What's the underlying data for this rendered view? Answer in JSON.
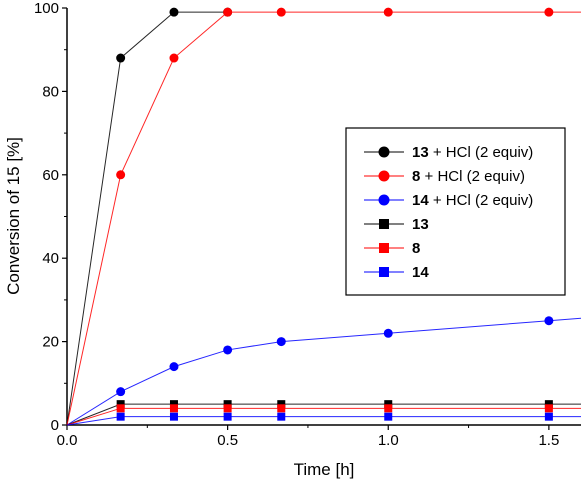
{
  "chart_data": {
    "type": "line",
    "xlabel": "Time [h]",
    "ylabel": "Conversion of 15 [%]",
    "xlim": [
      0,
      1.6
    ],
    "ylim": [
      0,
      100
    ],
    "x_ticks": [
      0.0,
      0.5,
      1.0,
      1.5
    ],
    "x_tick_labels": [
      "0.0",
      "0.5",
      "1.0",
      "1.5"
    ],
    "y_ticks": [
      0,
      20,
      40,
      60,
      80,
      100
    ],
    "y_tick_labels": [
      "0",
      "20",
      "40",
      "60",
      "80",
      "100"
    ],
    "legend_position": "right",
    "series": [
      {
        "name_bold": "13",
        "name_rest": " + HCl (2 equiv)",
        "color": "#000000",
        "marker": "circle",
        "x": [
          0,
          0.167,
          0.333,
          0.5
        ],
        "y": [
          0,
          88,
          99,
          99
        ],
        "trail_to": 0.5
      },
      {
        "name_bold": "8",
        "name_rest": " + HCl (2 equiv)",
        "color": "#ff0000",
        "marker": "circle",
        "x": [
          0,
          0.167,
          0.333,
          0.5,
          0.667,
          1.0,
          1.5
        ],
        "y": [
          0,
          60,
          88,
          99,
          99,
          99,
          99
        ],
        "trail_to": 1.6
      },
      {
        "name_bold": "14",
        "name_rest": " + HCl (2 equiv)",
        "color": "#0000ff",
        "marker": "circle",
        "x": [
          0,
          0.167,
          0.333,
          0.5,
          0.667,
          1.0,
          1.5
        ],
        "y": [
          0,
          8,
          14,
          18,
          20,
          22,
          25
        ],
        "trail_to": 1.6,
        "trail_y": 25.6
      },
      {
        "name_bold": "13",
        "name_rest": "",
        "color": "#000000",
        "marker": "square",
        "x": [
          0,
          0.167,
          0.333,
          0.5,
          0.667,
          1.0,
          1.5
        ],
        "y": [
          0,
          5,
          5,
          5,
          5,
          5,
          5
        ],
        "trail_to": 1.6
      },
      {
        "name_bold": "8",
        "name_rest": "",
        "color": "#ff0000",
        "marker": "square",
        "x": [
          0,
          0.167,
          0.333,
          0.5,
          0.667,
          1.0,
          1.5
        ],
        "y": [
          0,
          4,
          4,
          4,
          4,
          4,
          4
        ],
        "trail_to": 1.6
      },
      {
        "name_bold": "14",
        "name_rest": "",
        "color": "#0000ff",
        "marker": "square",
        "x": [
          0,
          0.167,
          0.333,
          0.5,
          0.667,
          1.0,
          1.5
        ],
        "y": [
          0,
          2,
          2,
          2,
          2,
          2,
          2
        ],
        "trail_to": 1.6
      }
    ]
  }
}
